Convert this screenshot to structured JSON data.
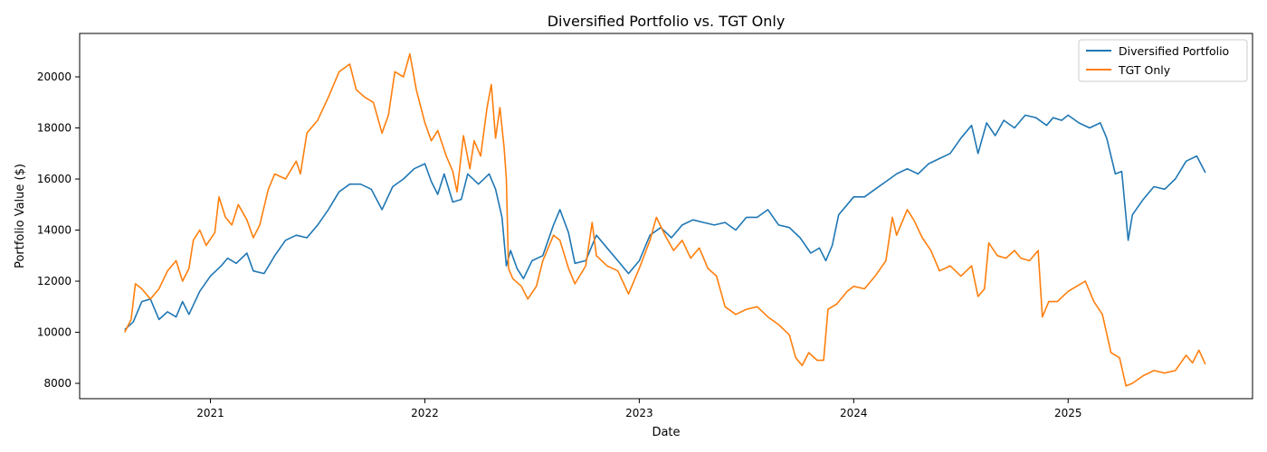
{
  "chart_data": {
    "type": "line",
    "title": "Diversified Portfolio vs. TGT Only",
    "xlabel": "Date",
    "ylabel": "Portfolio Value ($)",
    "xlim": [
      2020.39,
      2025.86
    ],
    "ylim": [
      7400,
      21700
    ],
    "x_ticks": [
      {
        "value": 2021,
        "label": "2021"
      },
      {
        "value": 2022,
        "label": "2022"
      },
      {
        "value": 2023,
        "label": "2023"
      },
      {
        "value": 2024,
        "label": "2024"
      },
      {
        "value": 2025,
        "label": "2025"
      }
    ],
    "y_ticks": [
      {
        "value": 8000,
        "label": "8000"
      },
      {
        "value": 10000,
        "label": "10000"
      },
      {
        "value": 12000,
        "label": "12000"
      },
      {
        "value": 14000,
        "label": "14000"
      },
      {
        "value": 16000,
        "label": "16000"
      },
      {
        "value": 18000,
        "label": "18000"
      },
      {
        "value": 20000,
        "label": "20000"
      }
    ],
    "grid": false,
    "legend_position": "top-right",
    "series": [
      {
        "name": "Diversified Portfolio",
        "color": "#1f77b4",
        "points": [
          [
            2020.6,
            10100
          ],
          [
            2020.64,
            10400
          ],
          [
            2020.68,
            11200
          ],
          [
            2020.72,
            11300
          ],
          [
            2020.76,
            10500
          ],
          [
            2020.8,
            10800
          ],
          [
            2020.84,
            10600
          ],
          [
            2020.87,
            11200
          ],
          [
            2020.9,
            10700
          ],
          [
            2020.95,
            11600
          ],
          [
            2021.0,
            12200
          ],
          [
            2021.05,
            12600
          ],
          [
            2021.08,
            12900
          ],
          [
            2021.12,
            12700
          ],
          [
            2021.17,
            13100
          ],
          [
            2021.2,
            12400
          ],
          [
            2021.25,
            12300
          ],
          [
            2021.3,
            13000
          ],
          [
            2021.35,
            13600
          ],
          [
            2021.4,
            13800
          ],
          [
            2021.45,
            13700
          ],
          [
            2021.5,
            14200
          ],
          [
            2021.55,
            14800
          ],
          [
            2021.6,
            15500
          ],
          [
            2021.65,
            15800
          ],
          [
            2021.7,
            15800
          ],
          [
            2021.75,
            15600
          ],
          [
            2021.8,
            14800
          ],
          [
            2021.85,
            15700
          ],
          [
            2021.9,
            16000
          ],
          [
            2021.95,
            16400
          ],
          [
            2022.0,
            16600
          ],
          [
            2022.03,
            15900
          ],
          [
            2022.06,
            15400
          ],
          [
            2022.09,
            16200
          ],
          [
            2022.13,
            15100
          ],
          [
            2022.17,
            15200
          ],
          [
            2022.2,
            16200
          ],
          [
            2022.25,
            15800
          ],
          [
            2022.3,
            16200
          ],
          [
            2022.33,
            15600
          ],
          [
            2022.36,
            14500
          ],
          [
            2022.38,
            12600
          ],
          [
            2022.4,
            13200
          ],
          [
            2022.43,
            12500
          ],
          [
            2022.46,
            12100
          ],
          [
            2022.5,
            12800
          ],
          [
            2022.55,
            13000
          ],
          [
            2022.6,
            14200
          ],
          [
            2022.63,
            14800
          ],
          [
            2022.67,
            13900
          ],
          [
            2022.7,
            12700
          ],
          [
            2022.75,
            12800
          ],
          [
            2022.8,
            13800
          ],
          [
            2022.85,
            13300
          ],
          [
            2022.9,
            12800
          ],
          [
            2022.95,
            12300
          ],
          [
            2023.0,
            12800
          ],
          [
            2023.05,
            13800
          ],
          [
            2023.1,
            14100
          ],
          [
            2023.15,
            13700
          ],
          [
            2023.2,
            14200
          ],
          [
            2023.25,
            14400
          ],
          [
            2023.3,
            14300
          ],
          [
            2023.35,
            14200
          ],
          [
            2023.4,
            14300
          ],
          [
            2023.45,
            14000
          ],
          [
            2023.5,
            14500
          ],
          [
            2023.55,
            14500
          ],
          [
            2023.6,
            14800
          ],
          [
            2023.65,
            14200
          ],
          [
            2023.7,
            14100
          ],
          [
            2023.75,
            13700
          ],
          [
            2023.8,
            13100
          ],
          [
            2023.84,
            13300
          ],
          [
            2023.87,
            12800
          ],
          [
            2023.9,
            13400
          ],
          [
            2023.93,
            14600
          ],
          [
            2023.97,
            15000
          ],
          [
            2024.0,
            15300
          ],
          [
            2024.05,
            15300
          ],
          [
            2024.1,
            15600
          ],
          [
            2024.15,
            15900
          ],
          [
            2024.2,
            16200
          ],
          [
            2024.25,
            16400
          ],
          [
            2024.3,
            16200
          ],
          [
            2024.35,
            16600
          ],
          [
            2024.4,
            16800
          ],
          [
            2024.45,
            17000
          ],
          [
            2024.5,
            17600
          ],
          [
            2024.55,
            18100
          ],
          [
            2024.58,
            17000
          ],
          [
            2024.62,
            18200
          ],
          [
            2024.66,
            17700
          ],
          [
            2024.7,
            18300
          ],
          [
            2024.75,
            18000
          ],
          [
            2024.8,
            18500
          ],
          [
            2024.85,
            18400
          ],
          [
            2024.9,
            18100
          ],
          [
            2024.93,
            18400
          ],
          [
            2024.97,
            18300
          ],
          [
            2025.0,
            18500
          ],
          [
            2025.05,
            18200
          ],
          [
            2025.1,
            18000
          ],
          [
            2025.15,
            18200
          ],
          [
            2025.18,
            17600
          ],
          [
            2025.22,
            16200
          ],
          [
            2025.25,
            16300
          ],
          [
            2025.28,
            13600
          ],
          [
            2025.3,
            14600
          ],
          [
            2025.35,
            15200
          ],
          [
            2025.4,
            15700
          ],
          [
            2025.45,
            15600
          ],
          [
            2025.5,
            16000
          ],
          [
            2025.55,
            16700
          ],
          [
            2025.6,
            16900
          ],
          [
            2025.64,
            16250
          ]
        ]
      },
      {
        "name": "TGT Only",
        "color": "#ff7f0e",
        "points": [
          [
            2020.6,
            10000
          ],
          [
            2020.63,
            10500
          ],
          [
            2020.65,
            11900
          ],
          [
            2020.68,
            11700
          ],
          [
            2020.72,
            11300
          ],
          [
            2020.76,
            11700
          ],
          [
            2020.8,
            12400
          ],
          [
            2020.84,
            12800
          ],
          [
            2020.87,
            12000
          ],
          [
            2020.9,
            12500
          ],
          [
            2020.92,
            13600
          ],
          [
            2020.95,
            14000
          ],
          [
            2020.98,
            13400
          ],
          [
            2021.02,
            13900
          ],
          [
            2021.04,
            15300
          ],
          [
            2021.07,
            14500
          ],
          [
            2021.1,
            14200
          ],
          [
            2021.13,
            15000
          ],
          [
            2021.17,
            14400
          ],
          [
            2021.2,
            13700
          ],
          [
            2021.23,
            14200
          ],
          [
            2021.27,
            15600
          ],
          [
            2021.3,
            16200
          ],
          [
            2021.35,
            16000
          ],
          [
            2021.4,
            16700
          ],
          [
            2021.42,
            16200
          ],
          [
            2021.45,
            17800
          ],
          [
            2021.5,
            18300
          ],
          [
            2021.55,
            19200
          ],
          [
            2021.6,
            20200
          ],
          [
            2021.65,
            20500
          ],
          [
            2021.68,
            19500
          ],
          [
            2021.72,
            19200
          ],
          [
            2021.76,
            19000
          ],
          [
            2021.8,
            17800
          ],
          [
            2021.83,
            18500
          ],
          [
            2021.86,
            20200
          ],
          [
            2021.9,
            20000
          ],
          [
            2021.93,
            20900
          ],
          [
            2021.96,
            19500
          ],
          [
            2022.0,
            18200
          ],
          [
            2022.03,
            17500
          ],
          [
            2022.06,
            17900
          ],
          [
            2022.1,
            16900
          ],
          [
            2022.13,
            16300
          ],
          [
            2022.15,
            15500
          ],
          [
            2022.18,
            17700
          ],
          [
            2022.21,
            16400
          ],
          [
            2022.23,
            17500
          ],
          [
            2022.26,
            16900
          ],
          [
            2022.29,
            18800
          ],
          [
            2022.31,
            19700
          ],
          [
            2022.33,
            17600
          ],
          [
            2022.35,
            18800
          ],
          [
            2022.37,
            17200
          ],
          [
            2022.38,
            16000
          ],
          [
            2022.39,
            12500
          ],
          [
            2022.41,
            12100
          ],
          [
            2022.45,
            11800
          ],
          [
            2022.48,
            11300
          ],
          [
            2022.52,
            11800
          ],
          [
            2022.55,
            12800
          ],
          [
            2022.6,
            13800
          ],
          [
            2022.63,
            13600
          ],
          [
            2022.67,
            12500
          ],
          [
            2022.7,
            11900
          ],
          [
            2022.75,
            12600
          ],
          [
            2022.78,
            14300
          ],
          [
            2022.8,
            13000
          ],
          [
            2022.85,
            12600
          ],
          [
            2022.9,
            12400
          ],
          [
            2022.95,
            11500
          ],
          [
            2023.0,
            12500
          ],
          [
            2023.05,
            13600
          ],
          [
            2023.08,
            14500
          ],
          [
            2023.12,
            13800
          ],
          [
            2023.16,
            13200
          ],
          [
            2023.2,
            13600
          ],
          [
            2023.24,
            12900
          ],
          [
            2023.28,
            13300
          ],
          [
            2023.32,
            12500
          ],
          [
            2023.36,
            12200
          ],
          [
            2023.4,
            11000
          ],
          [
            2023.45,
            10700
          ],
          [
            2023.5,
            10900
          ],
          [
            2023.55,
            11000
          ],
          [
            2023.6,
            10600
          ],
          [
            2023.65,
            10300
          ],
          [
            2023.7,
            9900
          ],
          [
            2023.73,
            9000
          ],
          [
            2023.76,
            8700
          ],
          [
            2023.79,
            9200
          ],
          [
            2023.83,
            8900
          ],
          [
            2023.86,
            8900
          ],
          [
            2023.88,
            10900
          ],
          [
            2023.92,
            11100
          ],
          [
            2023.97,
            11600
          ],
          [
            2024.0,
            11800
          ],
          [
            2024.05,
            11700
          ],
          [
            2024.1,
            12200
          ],
          [
            2024.15,
            12800
          ],
          [
            2024.18,
            14500
          ],
          [
            2024.2,
            13800
          ],
          [
            2024.25,
            14800
          ],
          [
            2024.28,
            14400
          ],
          [
            2024.32,
            13700
          ],
          [
            2024.36,
            13200
          ],
          [
            2024.4,
            12400
          ],
          [
            2024.45,
            12600
          ],
          [
            2024.5,
            12200
          ],
          [
            2024.55,
            12600
          ],
          [
            2024.58,
            11400
          ],
          [
            2024.61,
            11700
          ],
          [
            2024.63,
            13500
          ],
          [
            2024.67,
            13000
          ],
          [
            2024.71,
            12900
          ],
          [
            2024.75,
            13200
          ],
          [
            2024.78,
            12900
          ],
          [
            2024.82,
            12800
          ],
          [
            2024.86,
            13200
          ],
          [
            2024.88,
            10600
          ],
          [
            2024.91,
            11200
          ],
          [
            2024.95,
            11200
          ],
          [
            2025.0,
            11600
          ],
          [
            2025.04,
            11800
          ],
          [
            2025.08,
            12000
          ],
          [
            2025.12,
            11200
          ],
          [
            2025.16,
            10700
          ],
          [
            2025.2,
            9200
          ],
          [
            2025.24,
            9000
          ],
          [
            2025.27,
            7900
          ],
          [
            2025.3,
            8000
          ],
          [
            2025.35,
            8300
          ],
          [
            2025.4,
            8500
          ],
          [
            2025.45,
            8400
          ],
          [
            2025.5,
            8500
          ],
          [
            2025.55,
            9100
          ],
          [
            2025.58,
            8800
          ],
          [
            2025.61,
            9300
          ],
          [
            2025.64,
            8750
          ]
        ]
      }
    ]
  }
}
